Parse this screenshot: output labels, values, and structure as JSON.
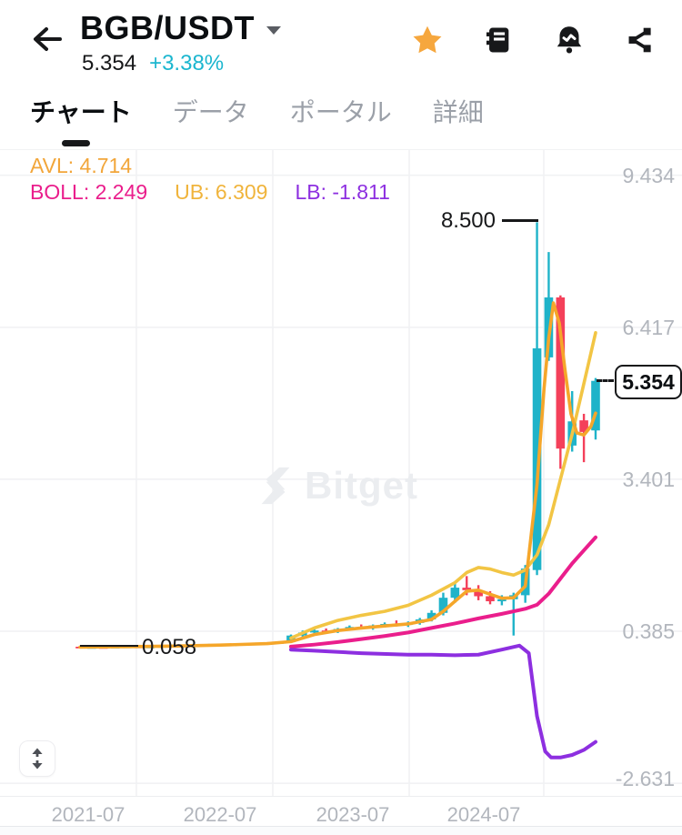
{
  "header": {
    "title": "BGB/USDT",
    "price": "5.354",
    "change": "+3.38%",
    "change_color": "#1bb6cf",
    "icons": [
      "back-arrow",
      "favorite-star",
      "orderbook-notebook",
      "alert-bell",
      "share"
    ]
  },
  "tabs": [
    {
      "label": "チャート",
      "active": true
    },
    {
      "label": "データ",
      "active": false
    },
    {
      "label": "ポータル",
      "active": false
    },
    {
      "label": "詳細",
      "active": false
    }
  ],
  "legend": {
    "items": [
      {
        "text": "AVL: 4.714",
        "color": "#f2a63a"
      },
      {
        "text": "BOLL: 2.249",
        "color": "#ea1e8c"
      },
      {
        "text": "UB: 6.309",
        "color": "#f0b43c"
      },
      {
        "text": "LB: -1.811",
        "color": "#8d2fe0"
      }
    ]
  },
  "watermark": {
    "text": "Bitget"
  },
  "chart_data": {
    "type": "candlestick",
    "pair": "BGB/USDT",
    "timeframe_hint": "monthly",
    "y_axis_labels": [
      "9.434",
      "6.417",
      "3.401",
      "0.385",
      "-2.631"
    ],
    "y_axis_values": [
      9.434,
      6.417,
      3.401,
      0.385,
      -2.631
    ],
    "x_axis_labels": [
      "2021-07",
      "2022-07",
      "2023-07",
      "2024-07"
    ],
    "annotations": {
      "high": "8.500",
      "low": "0.058",
      "current": "5.354"
    },
    "indicators": {
      "AVL": 4.714,
      "BOLL_MID": 2.249,
      "BOLL_UB": 6.309,
      "BOLL_LB": -1.811
    },
    "colors": {
      "up": "#1fb3c9",
      "down": "#f4405a",
      "avl": "#f5a62a",
      "ub": "#f2c544",
      "mid": "#ea1e8c",
      "lb": "#8d2fe0",
      "grid": "#f0f1f3",
      "axis_text": "#b2b6bd"
    },
    "candles": [
      [
        0.078,
        0.092,
        0.058,
        0.065
      ],
      [
        0.065,
        0.075,
        0.058,
        0.07
      ],
      [
        0.07,
        0.078,
        0.062,
        0.066
      ],
      [
        0.066,
        0.08,
        0.062,
        0.075
      ],
      [
        0.075,
        0.088,
        0.07,
        0.082
      ],
      [
        0.082,
        0.09,
        0.072,
        0.078
      ],
      [
        0.078,
        0.085,
        0.07,
        0.08
      ],
      [
        0.08,
        0.095,
        0.074,
        0.09
      ],
      [
        0.09,
        0.105,
        0.082,
        0.098
      ],
      [
        0.098,
        0.11,
        0.088,
        0.094
      ],
      [
        0.094,
        0.12,
        0.09,
        0.112
      ],
      [
        0.112,
        0.135,
        0.1,
        0.125
      ],
      [
        0.125,
        0.14,
        0.108,
        0.118
      ],
      [
        0.118,
        0.13,
        0.105,
        0.122
      ],
      [
        0.122,
        0.145,
        0.115,
        0.138
      ],
      [
        0.138,
        0.16,
        0.125,
        0.15
      ],
      [
        0.15,
        0.17,
        0.133,
        0.145
      ],
      [
        0.145,
        0.175,
        0.138,
        0.168
      ],
      [
        0.168,
        0.32,
        0.15,
        0.3
      ],
      [
        0.3,
        0.4,
        0.26,
        0.36
      ],
      [
        0.36,
        0.42,
        0.33,
        0.4
      ],
      [
        0.4,
        0.44,
        0.355,
        0.38
      ],
      [
        0.38,
        0.45,
        0.35,
        0.43
      ],
      [
        0.43,
        0.5,
        0.395,
        0.47
      ],
      [
        0.47,
        0.52,
        0.42,
        0.45
      ],
      [
        0.45,
        0.52,
        0.415,
        0.5
      ],
      [
        0.5,
        0.56,
        0.46,
        0.53
      ],
      [
        0.53,
        0.6,
        0.48,
        0.51
      ],
      [
        0.51,
        0.58,
        0.47,
        0.55
      ],
      [
        0.55,
        0.65,
        0.515,
        0.62
      ],
      [
        0.62,
        0.8,
        0.58,
        0.75
      ],
      [
        0.75,
        1.15,
        0.7,
        1.05
      ],
      [
        1.05,
        1.35,
        0.95,
        1.25
      ],
      [
        1.25,
        1.48,
        1.1,
        1.2
      ],
      [
        1.2,
        1.3,
        1.0,
        1.08
      ],
      [
        1.08,
        1.18,
        0.92,
        0.98
      ],
      [
        0.98,
        1.1,
        0.9,
        1.02
      ],
      [
        1.02,
        1.15,
        0.3,
        1.1
      ],
      [
        1.1,
        1.7,
        0.95,
        1.63
      ],
      [
        1.6,
        8.5,
        1.5,
        6.0
      ],
      [
        5.82,
        7.91,
        5.75,
        7.01
      ],
      [
        7.01,
        7.05,
        3.61,
        4.01
      ],
      [
        4.07,
        5.15,
        3.95,
        4.55
      ],
      [
        4.57,
        4.7,
        3.74,
        4.34
      ],
      [
        4.37,
        5.41,
        4.19,
        5.354
      ]
    ],
    "lines": {
      "avl": [
        [
          0,
          0.07
        ],
        [
          4,
          0.08
        ],
        [
          8,
          0.09
        ],
        [
          12,
          0.11
        ],
        [
          16,
          0.14
        ],
        [
          18,
          0.18
        ],
        [
          19,
          0.25
        ],
        [
          20,
          0.32
        ],
        [
          22,
          0.4
        ],
        [
          24,
          0.45
        ],
        [
          26,
          0.49
        ],
        [
          28,
          0.53
        ],
        [
          30,
          0.62
        ],
        [
          31,
          0.78
        ],
        [
          32,
          0.98
        ],
        [
          33,
          1.18
        ],
        [
          34,
          1.2
        ],
        [
          35,
          1.12
        ],
        [
          36,
          1.04
        ],
        [
          37,
          1.05
        ],
        [
          38,
          1.28
        ],
        [
          39,
          3.3
        ],
        [
          39.6,
          5.2
        ],
        [
          40,
          6.2
        ],
        [
          40.4,
          6.9
        ],
        [
          40.9,
          6.5
        ],
        [
          41.4,
          5.55
        ],
        [
          41.9,
          4.7
        ],
        [
          42.4,
          4.32
        ],
        [
          43,
          4.28
        ],
        [
          43.6,
          4.45
        ],
        [
          44,
          4.714
        ]
      ],
      "ub": [
        [
          18,
          0.25
        ],
        [
          20,
          0.45
        ],
        [
          22,
          0.6
        ],
        [
          24,
          0.7
        ],
        [
          26,
          0.78
        ],
        [
          28,
          0.9
        ],
        [
          30,
          1.1
        ],
        [
          32,
          1.35
        ],
        [
          33,
          1.55
        ],
        [
          34,
          1.65
        ],
        [
          35,
          1.62
        ],
        [
          36,
          1.55
        ],
        [
          37,
          1.5
        ],
        [
          38,
          1.6
        ],
        [
          39,
          1.9
        ],
        [
          40,
          2.5
        ],
        [
          41,
          3.4
        ],
        [
          42,
          4.3
        ],
        [
          43,
          5.3
        ],
        [
          44,
          6.309
        ]
      ],
      "mid": [
        [
          18,
          0.08
        ],
        [
          20,
          0.12
        ],
        [
          22,
          0.17
        ],
        [
          24,
          0.23
        ],
        [
          26,
          0.29
        ],
        [
          28,
          0.36
        ],
        [
          30,
          0.45
        ],
        [
          32,
          0.54
        ],
        [
          34,
          0.64
        ],
        [
          36,
          0.73
        ],
        [
          38,
          0.83
        ],
        [
          39,
          0.91
        ],
        [
          40,
          1.13
        ],
        [
          41,
          1.43
        ],
        [
          42,
          1.73
        ],
        [
          43,
          1.99
        ],
        [
          44,
          2.249
        ]
      ],
      "lb": [
        [
          18,
          0.02
        ],
        [
          20,
          0.0
        ],
        [
          24,
          -0.05
        ],
        [
          28,
          -0.08
        ],
        [
          30,
          -0.08
        ],
        [
          32,
          -0.09
        ],
        [
          34,
          -0.08
        ],
        [
          36,
          0.02
        ],
        [
          37.5,
          0.1
        ],
        [
          38.3,
          -0.05
        ],
        [
          39,
          -1.3
        ],
        [
          39.7,
          -2.0
        ],
        [
          40.2,
          -2.12
        ],
        [
          41,
          -2.12
        ],
        [
          42,
          -2.07
        ],
        [
          43,
          -1.97
        ],
        [
          44,
          -1.811
        ]
      ]
    },
    "grid": {
      "h_at_values": [
        9.434,
        6.417,
        3.401,
        0.385,
        -2.631
      ],
      "v_at_x": [
        150,
        300,
        450,
        598
      ]
    }
  }
}
